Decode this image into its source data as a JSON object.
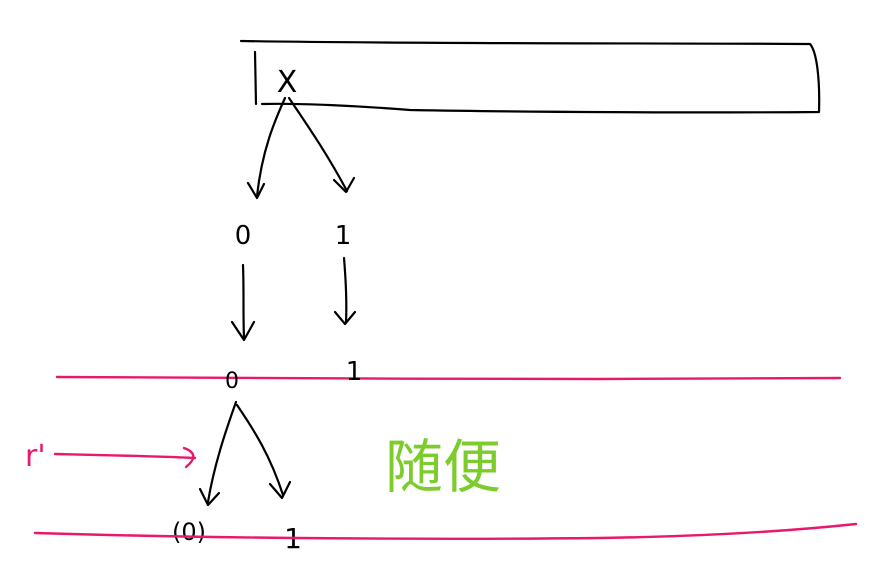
{
  "colors": {
    "ink": "#000000",
    "rule": "#e8186a",
    "annotation": "#7ccc2c"
  },
  "register": {
    "top_label": "X"
  },
  "tree": {
    "left_branch_label": "0",
    "right_branch_label": "1",
    "level1_left_node": "0",
    "level1_right_node": "1",
    "level2_left_node": "(0)",
    "level2_right_node": "1"
  },
  "annotations": {
    "pink_label": "r'",
    "green_text": "随便"
  }
}
